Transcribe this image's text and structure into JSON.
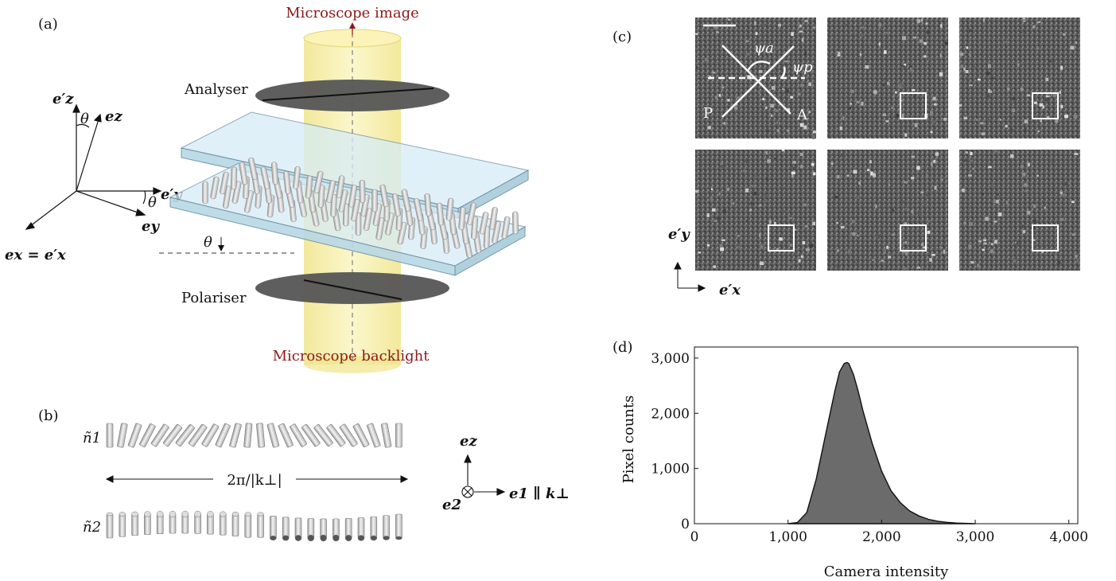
{
  "panels": {
    "a": {
      "tag": "(a)",
      "microscope_image": "Microscope image",
      "analyser": "Analyser",
      "polariser": "Polariser",
      "backlight": "Microscope backlight",
      "axes": {
        "ez_prime": "e′z",
        "ez": "ez",
        "ey_prime": "e′y",
        "ey": "ey",
        "ex_eq": "ex = e′x",
        "theta": "θ"
      }
    },
    "b": {
      "tag": "(b)",
      "n1": "ñ1",
      "n2": "ñ2",
      "period": "2π/|k⊥|",
      "e_z": "ez",
      "e_2": "e2",
      "e_1_k": "e1 ∥ k⊥"
    },
    "c": {
      "tag": "(c)",
      "psi_a": "ψa",
      "psi_p": "ψp",
      "P": "P",
      "A": "A",
      "ey_prime": "e′y",
      "ex_prime": "e′x"
    },
    "d": {
      "tag": "(d)"
    }
  },
  "colors": {
    "dark_red": "#8b1a1a",
    "glass": "#cfe6f2",
    "beam": "#f3ea92",
    "disc": "#555555",
    "hist_fill": "#6b6b6b"
  },
  "chart_data": {
    "type": "area",
    "title": "",
    "xlabel": "Camera intensity",
    "ylabel": "Pixel counts",
    "xlim": [
      0,
      4096
    ],
    "ylim": [
      0,
      3200
    ],
    "xticks": [
      "0",
      "1,000",
      "2,000",
      "3,000",
      "4,000"
    ],
    "yticks": [
      "0",
      "1,000",
      "2,000",
      "3,000"
    ],
    "x": [
      1000,
      1100,
      1200,
      1300,
      1400,
      1500,
      1550,
      1600,
      1630,
      1650,
      1700,
      1750,
      1800,
      1900,
      2000,
      2100,
      2200,
      2300,
      2400,
      2500,
      2600,
      2700,
      2800,
      3000
    ],
    "y": [
      0,
      20,
      200,
      800,
      1600,
      2400,
      2750,
      2900,
      2920,
      2900,
      2700,
      2400,
      2050,
      1450,
      950,
      600,
      380,
      230,
      140,
      80,
      45,
      25,
      12,
      0
    ]
  }
}
